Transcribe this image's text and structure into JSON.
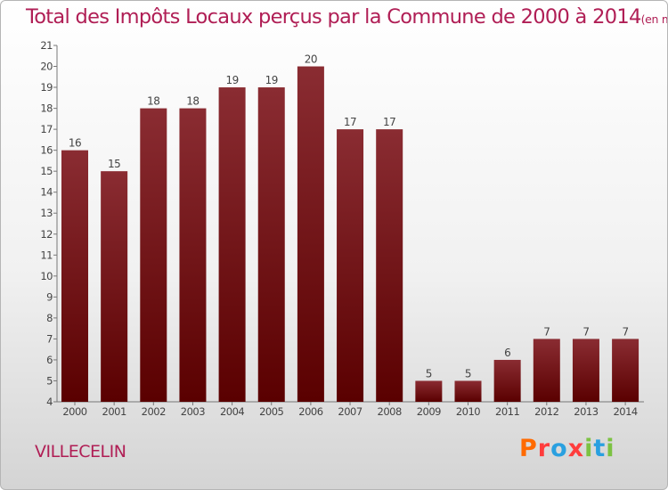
{
  "header": {
    "title": "Total des Impôts Locaux perçus par la Commune de 2000 à 2014",
    "unit": "(en milliers d'€)"
  },
  "footer": {
    "commune": "VILLECELIN",
    "brand": "Proxiti"
  },
  "colors": {
    "title": "#b01e55",
    "bar_top": "#8a2c32",
    "bar_bottom": "#5a0000",
    "brand_letters": [
      "#ff6a00",
      "#ff3c3c",
      "#2aa0e0",
      "#ff3c3c",
      "#7cc242",
      "#2aa0e0",
      "#7cc242"
    ]
  },
  "chart_data": {
    "type": "bar",
    "categories": [
      "2000",
      "2001",
      "2002",
      "2003",
      "2004",
      "2005",
      "2006",
      "2007",
      "2008",
      "2009",
      "2010",
      "2011",
      "2012",
      "2013",
      "2014"
    ],
    "values": [
      16,
      15,
      18,
      18,
      19,
      19,
      20,
      17,
      17,
      5,
      5,
      6,
      7,
      7,
      7
    ],
    "ylim": [
      4,
      21
    ],
    "yticks": [
      4,
      5,
      6,
      7,
      8,
      9,
      10,
      11,
      12,
      13,
      14,
      15,
      16,
      17,
      18,
      19,
      20,
      21
    ],
    "grid": false,
    "data_labels": true
  }
}
